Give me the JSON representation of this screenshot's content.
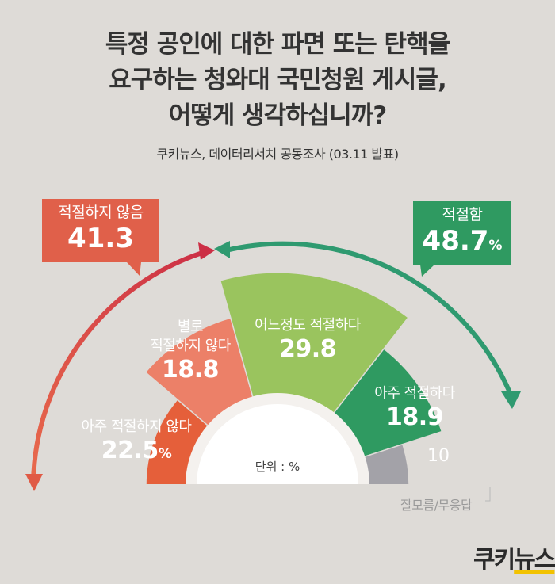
{
  "header": {
    "title_lines": [
      "특정 공인에 대한 파면 또는 탄핵을",
      "요구하는 청와대 국민청원 게시글,",
      "어떻게 생각하십니까?"
    ],
    "source": "쿠키뉴스, 데이터리서치 공동조사 (03.11 발표)"
  },
  "summary": {
    "negative": {
      "label": "적절하지 않음",
      "value": "41.3"
    },
    "positive": {
      "label": "적절함",
      "value": "48.7",
      "unit": "%"
    }
  },
  "unit_label": "단위 : %",
  "logo": {
    "text_a": "쿠키",
    "text_b": "뉴스"
  },
  "colors": {
    "background": "#dedbd7",
    "very_inappropriate": "#e55f3a",
    "somewhat_inappropriate": "#ec8068",
    "somewhat_appropriate": "#9ac45e",
    "very_appropriate": "#2f9a61",
    "no_response": "#a3a2a8",
    "negative_callout": "#e0604a",
    "positive_callout": "#2f9a61"
  },
  "chart_data": {
    "type": "pie",
    "shape": "semicircle",
    "unit": "%",
    "categories": [
      {
        "label_lines": [
          "아주 적절하지 않다"
        ],
        "value": 22.5,
        "value_text": "22.5",
        "unit_text": "%"
      },
      {
        "label_lines": [
          "별로",
          "적절하지 않다"
        ],
        "value": 18.8,
        "value_text": "18.8",
        "unit_text": ""
      },
      {
        "label_lines": [
          "어느정도 적절하다"
        ],
        "value": 29.8,
        "value_text": "29.8",
        "unit_text": ""
      },
      {
        "label_lines": [
          "아주 적절하다"
        ],
        "value": 18.9,
        "value_text": "18.9",
        "unit_text": ""
      },
      {
        "label_lines": [
          "잘모름/무응답"
        ],
        "value": 10,
        "value_text": "10",
        "unit_text": ""
      }
    ]
  }
}
